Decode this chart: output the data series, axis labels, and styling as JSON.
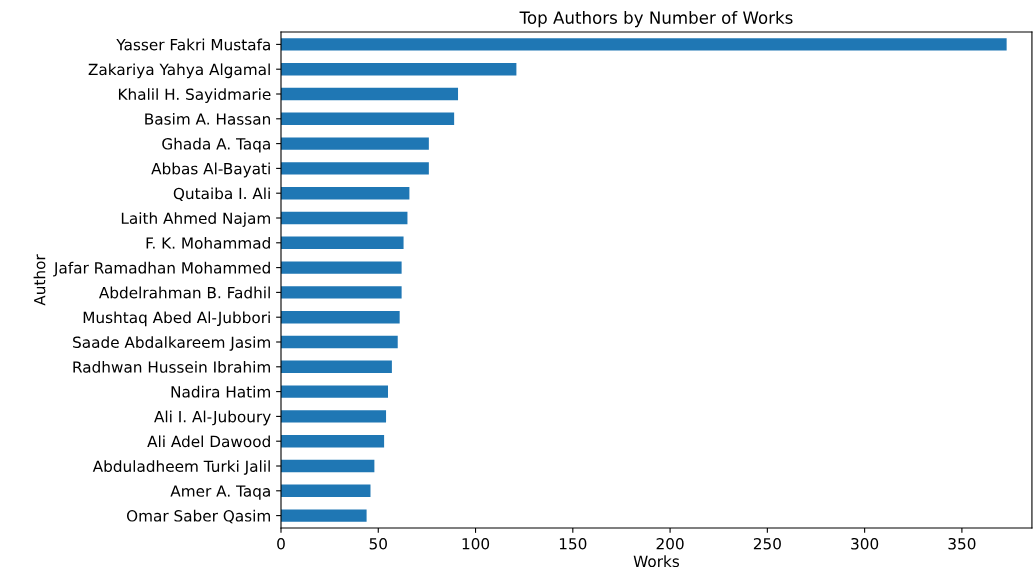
{
  "chart_data": {
    "type": "bar",
    "orientation": "horizontal",
    "title": "Top Authors by Number of Works",
    "xlabel": "Works",
    "ylabel": "Author",
    "categories": [
      "Yasser Fakri Mustafa",
      "Zakariya Yahya Algamal",
      "Khalil H. Sayidmarie",
      "Basim A. Hassan",
      "Ghada A. Taqa",
      "Abbas Al-Bayati",
      "Qutaiba I. Ali",
      "Laith Ahmed Najam",
      "F. K. Mohammad",
      "Jafar Ramadhan Mohammed",
      "Abdelrahman B. Fadhil",
      "Mushtaq Abed Al-Jubbori",
      "Saade Abdalkareem Jasim",
      "Radhwan Hussein Ibrahim",
      "Nadira Hatim",
      "Ali I. Al-Juboury",
      "Ali Adel Dawood",
      "Abduladheem Turki Jalil",
      "Amer A. Taqa",
      "Omar Saber Qasim"
    ],
    "values": [
      373,
      121,
      91,
      89,
      76,
      76,
      66,
      65,
      63,
      62,
      62,
      61,
      60,
      57,
      55,
      54,
      53,
      48,
      46,
      44
    ],
    "color": "#1f77b4",
    "xlim": [
      0,
      386
    ],
    "xticks": [
      0,
      50,
      100,
      150,
      200,
      250,
      300,
      350
    ],
    "grid": false,
    "legend": false
  }
}
